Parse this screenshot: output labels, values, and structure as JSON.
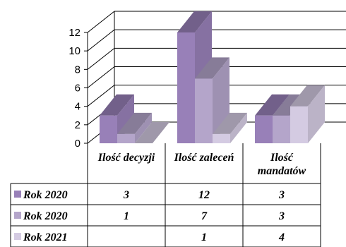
{
  "chart_data": {
    "type": "bar",
    "title": "",
    "xlabel": "",
    "ylabel": "",
    "ylim": [
      0,
      12
    ],
    "yticks": [
      0,
      2,
      4,
      6,
      8,
      10,
      12
    ],
    "grid": true,
    "categories": [
      "Ilość decyzji",
      "Ilość zaleceń",
      "Ilość mandatów"
    ],
    "category_lines": [
      [
        "Ilość decyzji"
      ],
      [
        "Ilość zaleceń"
      ],
      [
        "Ilość",
        "mandatów"
      ]
    ],
    "series": [
      {
        "name": "Rok 2020",
        "values": [
          3,
          12,
          3
        ],
        "labels": [
          "3",
          "12",
          "3"
        ],
        "color": "#9880b8"
      },
      {
        "name": "Rok 2020",
        "values": [
          1,
          7,
          3
        ],
        "labels": [
          "1",
          "7",
          "3"
        ],
        "color": "#b4a5ca"
      },
      {
        "name": "Rok 2021",
        "values": [
          0,
          1,
          4
        ],
        "labels": [
          "",
          "1",
          "4"
        ],
        "color": "#d4cbe2"
      }
    ],
    "legend": "data-table"
  }
}
